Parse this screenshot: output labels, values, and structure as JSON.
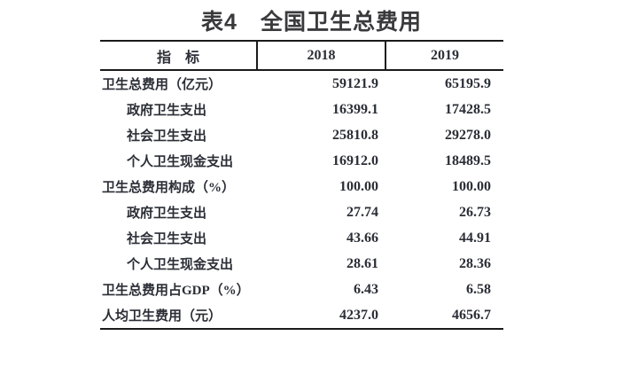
{
  "title": "表4　全国卫生总费用",
  "table": {
    "columns": [
      "指　标",
      "2018",
      "2019"
    ],
    "rows": [
      {
        "label": "卫生总费用（亿元）",
        "indent": false,
        "v2018": "59121.9",
        "v2019": "65195.9"
      },
      {
        "label": "政府卫生支出",
        "indent": true,
        "v2018": "16399.1",
        "v2019": "17428.5"
      },
      {
        "label": "社会卫生支出",
        "indent": true,
        "v2018": "25810.8",
        "v2019": "29278.0"
      },
      {
        "label": "个人卫生现金支出",
        "indent": true,
        "v2018": "16912.0",
        "v2019": "18489.5"
      },
      {
        "label": "卫生总费用构成（%）",
        "indent": false,
        "v2018": "100.00",
        "v2019": "100.00"
      },
      {
        "label": "政府卫生支出",
        "indent": true,
        "v2018": "27.74",
        "v2019": "26.73"
      },
      {
        "label": "社会卫生支出",
        "indent": true,
        "v2018": "43.66",
        "v2019": "44.91"
      },
      {
        "label": "个人卫生现金支出",
        "indent": true,
        "v2018": "28.61",
        "v2019": "28.36"
      },
      {
        "label": "卫生总费用占GDP（%）",
        "indent": false,
        "v2018": "6.43",
        "v2019": "6.58"
      },
      {
        "label": "人均卫生费用（元）",
        "indent": false,
        "v2018": "4237.0",
        "v2019": "4656.7"
      }
    ]
  },
  "colors": {
    "title_text": "#3a3a3d",
    "body_text": "#2b2e36",
    "border": "#1a1a1a",
    "background": "#ffffff"
  }
}
